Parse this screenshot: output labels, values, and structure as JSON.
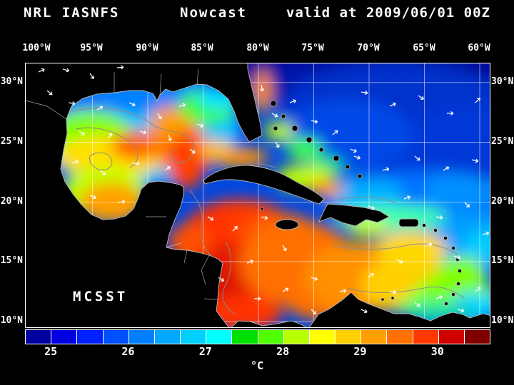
{
  "title": {
    "product": "NRL IASNFS",
    "mode": "Nowcast",
    "valid": "valid at 2009/06/01 00Z"
  },
  "map": {
    "dataset_label": "MCSST"
  },
  "axes": {
    "lon_labels": [
      "100°W",
      "95°W",
      "90°W",
      "85°W",
      "80°W",
      "75°W",
      "70°W",
      "65°W",
      "60°W"
    ],
    "lat_labels": [
      "30°N",
      "25°N",
      "20°N",
      "15°N",
      "10°N"
    ]
  },
  "colorbar": {
    "unit": "°C",
    "ticks": [
      "25",
      "26",
      "27",
      "28",
      "29",
      "30"
    ],
    "colors": [
      "#0000a0",
      "#0000e0",
      "#0020ff",
      "#0050ff",
      "#0080ff",
      "#00a8ff",
      "#00d0ff",
      "#00ffff",
      "#00e000",
      "#50ff00",
      "#b8ff00",
      "#ffff00",
      "#ffd000",
      "#ffa000",
      "#ff7000",
      "#ff3800",
      "#d00000",
      "#800000"
    ]
  },
  "chart_data": {
    "type": "heatmap",
    "title": "NRL IASNFS Nowcast valid at 2009/06/01 00Z",
    "dataset": "MCSST",
    "unit": "°C",
    "lon_ticks": [
      "100°W",
      "95°W",
      "90°W",
      "85°W",
      "80°W",
      "75°W",
      "70°W",
      "65°W",
      "60°W"
    ],
    "lat_ticks": [
      "30°N",
      "25°N",
      "20°N",
      "15°N",
      "10°N"
    ],
    "colorbar_ticks": [
      25,
      26,
      27,
      28,
      29,
      30
    ],
    "colorbar_colors": [
      "#0000a0",
      "#0000e0",
      "#0020ff",
      "#0050ff",
      "#0080ff",
      "#00a8ff",
      "#00d0ff",
      "#00ffff",
      "#00e000",
      "#50ff00",
      "#b8ff00",
      "#ffff00",
      "#ffd000",
      "#ffa000",
      "#ff7000",
      "#ff3800",
      "#d00000",
      "#800000"
    ],
    "legend_position": "bottom",
    "grid": true
  }
}
